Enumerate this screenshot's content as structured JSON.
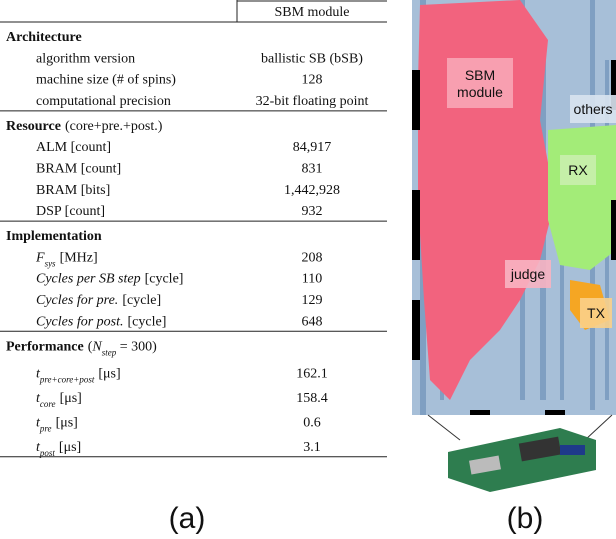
{
  "table": {
    "header": {
      "value_column": "SBM module"
    },
    "sections": [
      {
        "title": "Architecture",
        "rows": [
          {
            "text": "algorithm version",
            "value": "ballistic SB (bSB)"
          },
          {
            "text": "machine size (# of spins)",
            "value": "128"
          },
          {
            "text": "computational precision",
            "value": "32-bit floating point"
          }
        ]
      },
      {
        "title": "Resource",
        "note": "(core+pre.+post.)",
        "rows": [
          {
            "text": "ALM [count]",
            "value": "84,917"
          },
          {
            "text": "BRAM [count]",
            "value": "831"
          },
          {
            "text": "BRAM [bits]",
            "value": "1,442,928"
          },
          {
            "text": "DSP [count]",
            "value": "932"
          }
        ]
      },
      {
        "title": "Implementation",
        "rows": [
          {
            "var": "F",
            "sub": "sys",
            "unit": "[MHz]",
            "value": "208"
          },
          {
            "text": "Cycles per SB step",
            "italic": true,
            "unit": "[cycle]",
            "value": "110"
          },
          {
            "text": "Cycles for pre.",
            "italic": true,
            "unit": "[cycle]",
            "value": "129"
          },
          {
            "text": "Cycles for post.",
            "italic": true,
            "unit": "[cycle]",
            "value": "648"
          }
        ]
      },
      {
        "title": "Performance",
        "note_parts": {
          "open": "(",
          "var": "N",
          "sub": "step",
          "rest": " = 300)"
        },
        "rows": [
          {
            "var": "t",
            "sub": "pre+core+post",
            "unit": "[μs]",
            "value": "162.1"
          },
          {
            "var": "t",
            "sub": "core",
            "unit": "[μs]",
            "value": "158.4"
          },
          {
            "var": "t",
            "sub": "pre",
            "unit": "[μs]",
            "value": "0.6"
          },
          {
            "var": "t",
            "sub": "post",
            "unit": "[μs]",
            "value": "3.1"
          }
        ]
      }
    ]
  },
  "layout_image": {
    "labels": [
      {
        "lines": [
          "SBM",
          "module"
        ]
      },
      {
        "lines": [
          "others"
        ]
      },
      {
        "lines": [
          "RX"
        ]
      },
      {
        "lines": [
          "judge"
        ]
      },
      {
        "lines": [
          "TX"
        ]
      }
    ]
  },
  "captions": [
    "(a)",
    "(b)"
  ]
}
